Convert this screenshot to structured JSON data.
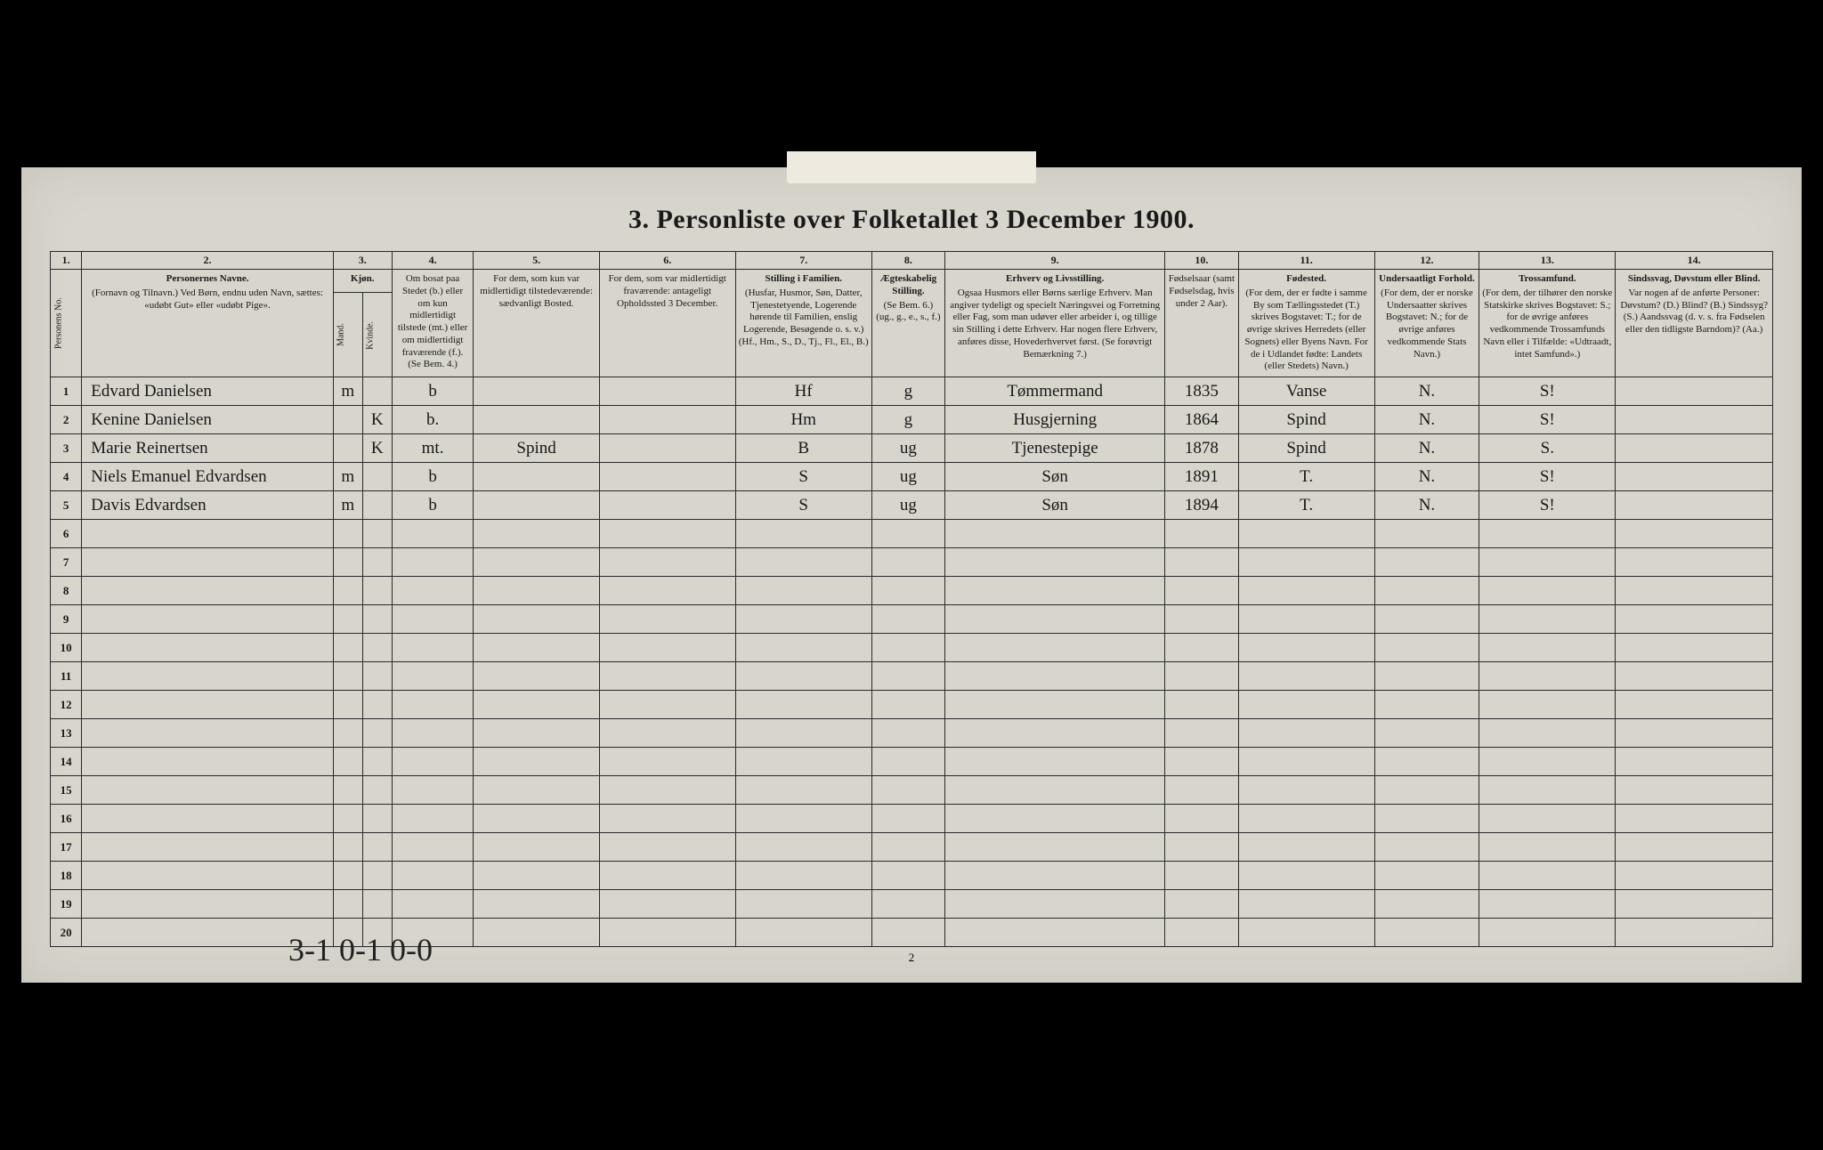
{
  "title": "3. Personliste over Folketallet 3 December 1900.",
  "page_number": "2",
  "hand_note": "3-1  0-1  0-0",
  "colors": {
    "page_bg": "#d8d5cc",
    "border": "#2a2a2a",
    "text": "#1a1a1a",
    "frame": "#000000"
  },
  "column_numbers": [
    "1.",
    "2.",
    "3.",
    "4.",
    "5.",
    "6.",
    "7.",
    "8.",
    "9.",
    "10.",
    "11.",
    "12.",
    "13.",
    "14."
  ],
  "headers": {
    "c1": "Personens No.",
    "c2_title": "Personernes Navne.",
    "c2_sub": "(Fornavn og Tilnavn.)\nVed Børn, endnu uden Navn, sættes: «udøbt Gut» eller «udøbt Pige».",
    "c3_title": "Kjøn.",
    "c3_m": "Mand.",
    "c3_k": "Kvinde.",
    "c4": "Om bosat paa Stedet (b.) eller om kun midlertidigt tilstede (mt.) eller om midlertidigt fraværende (f.). (Se Bem. 4.)",
    "c5": "For dem, som kun var midlertidigt tilstedeværende:\nsædvanligt Bosted.",
    "c6": "For dem, som var midlertidigt fraværende:\nantageligt Opholdssted 3 December.",
    "c7_title": "Stilling i Familien.",
    "c7_sub": "(Husfar, Husmor, Søn, Datter, Tjenestetyende, Logerende hørende til Familien, enslig Logerende, Besøgende o. s. v.)\n(Hf., Hm., S., D., Tj., Fl., El., B.)",
    "c8_title": "Ægteskabelig Stilling.",
    "c8_sub": "(Se Bem. 6.)\n(ug., g., e., s., f.)",
    "c9_title": "Erhverv og Livsstilling.",
    "c9_sub": "Ogsaa Husmors eller Børns særlige Erhverv. Man angiver tydeligt og specielt Næringsvei og Forretning eller Fag, som man udøver eller arbeider i, og tillige sin Stilling i dette Erhverv. Har nogen flere Erhverv, anføres disse, Hovederhvervet først.\n(Se forøvrigt Bemærkning 7.)",
    "c10": "Fødselsaar (samt Fødselsdag, hvis under 2 Aar).",
    "c11_title": "Fødested.",
    "c11_sub": "(For dem, der er fødte i samme By som Tællingsstedet (T.) skrives Bogstavet: T.; for de øvrige skrives Herredets (eller Sognets) eller Byens Navn. For de i Udlandet fødte: Landets (eller Stedets) Navn.)",
    "c12_title": "Undersaatligt Forhold.",
    "c12_sub": "(For dem, der er norske Undersaatter skrives Bogstavet: N.; for de øvrige anføres vedkommende Stats Navn.)",
    "c13_title": "Trossamfund.",
    "c13_sub": "(For dem, der tilhører den norske Statskirke skrives Bogstavet: S.; for de øvrige anføres vedkommende Trossamfunds Navn eller i Tilfælde: «Udtraadt, intet Samfund».)",
    "c14_title": "Sindssvag, Døvstum eller Blind.",
    "c14_sub": "Var nogen af de anførte Personer:\nDøvstum? (D.)\nBlind? (B.)\nSindssyg? (S.)\nAandssvag (d. v. s. fra Fødselen eller den tidligste Barndom)? (Aa.)"
  },
  "rows": [
    {
      "n": "1",
      "name": "Edvard Danielsen",
      "m": "m",
      "k": "",
      "c4": "b",
      "c5": "",
      "c6": "",
      "c7": "Hf",
      "c8": "g",
      "c9": "Tømmermand",
      "c10": "1835",
      "c11": "Vanse",
      "c12": "N.",
      "c13": "S!",
      "c14": ""
    },
    {
      "n": "2",
      "name": "Kenine Danielsen",
      "m": "",
      "k": "K",
      "c4": "b.",
      "c5": "",
      "c6": "",
      "c7": "Hm",
      "c8": "g",
      "c9": "Husgjerning",
      "c10": "1864",
      "c11": "Spind",
      "c12": "N.",
      "c13": "S!",
      "c14": ""
    },
    {
      "n": "3",
      "name": "Marie Reinertsen",
      "m": "",
      "k": "K",
      "c4": "mt.",
      "c5": "Spind",
      "c6": "",
      "c7": "B",
      "c8": "ug",
      "c9": "Tjenestepige",
      "c10": "1878",
      "c11": "Spind",
      "c12": "N.",
      "c13": "S.",
      "c14": ""
    },
    {
      "n": "4",
      "name": "Niels Emanuel Edvardsen",
      "m": "m",
      "k": "",
      "c4": "b",
      "c5": "",
      "c6": "",
      "c7": "S",
      "c8": "ug",
      "c9": "Søn",
      "c10": "1891",
      "c11": "T.",
      "c12": "N.",
      "c13": "S!",
      "c14": ""
    },
    {
      "n": "5",
      "name": "Davis Edvardsen",
      "m": "m",
      "k": "",
      "c4": "b",
      "c5": "",
      "c6": "",
      "c7": "S",
      "c8": "ug",
      "c9": "Søn",
      "c10": "1894",
      "c11": "T.",
      "c12": "N.",
      "c13": "S!",
      "c14": ""
    }
  ],
  "total_rows": 20
}
